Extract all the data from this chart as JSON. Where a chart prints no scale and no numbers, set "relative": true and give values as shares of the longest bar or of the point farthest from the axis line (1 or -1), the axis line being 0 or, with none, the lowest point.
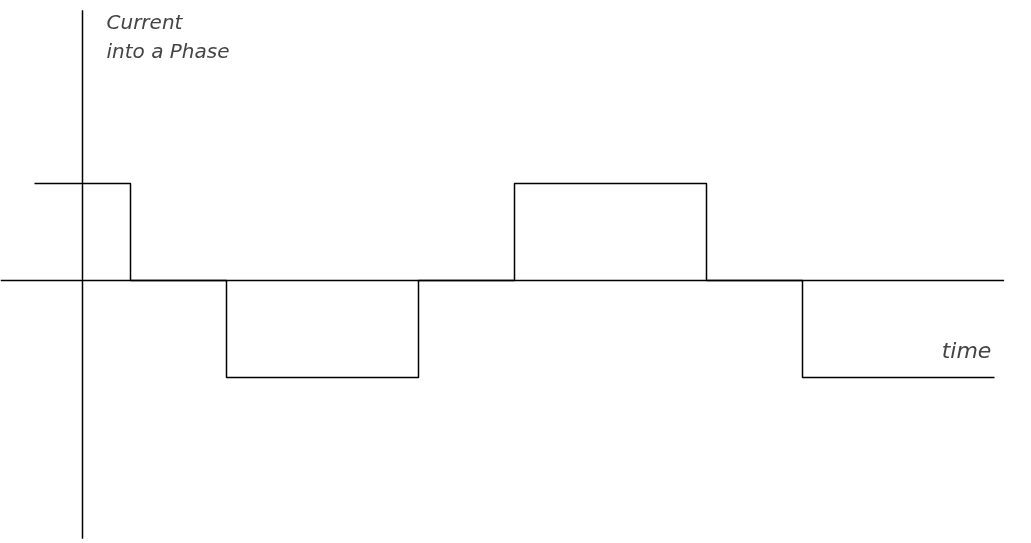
{
  "chart_data": {
    "type": "step",
    "relative": true,
    "annotations": [
      "Current\ninto a Phase"
    ],
    "xlabel": "time",
    "categories": [
      null,
      null,
      null,
      null,
      null,
      null,
      null,
      null,
      null,
      null,
      null
    ],
    "series": [
      {
        "color": "#000000",
        "values": [
          1,
          0,
          -1,
          -1,
          0,
          1,
          1,
          0,
          -1,
          -1,
          -1
        ]
      }
    ],
    "ref_lines": [
      {
        "axis": "y",
        "value": 0
      }
    ],
    "grid": false,
    "marker": "none",
    "line_style": "solid"
  }
}
